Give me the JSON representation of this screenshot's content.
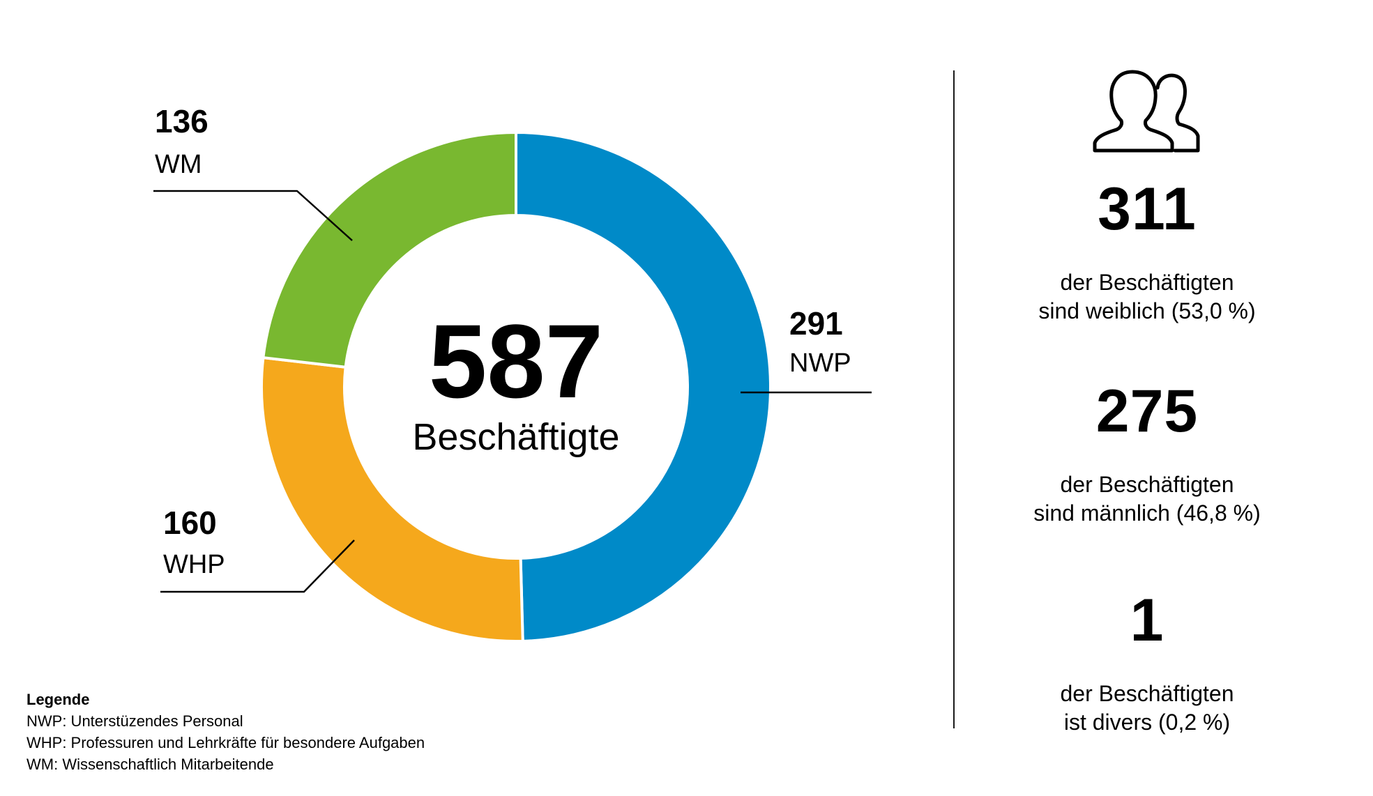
{
  "chart_data": {
    "type": "pie",
    "variant": "donut",
    "center": {
      "value": "587",
      "label": "Beschäftigte"
    },
    "slices": [
      {
        "label": "NWP",
        "value": 291,
        "display": "291",
        "color": "#008AC8"
      },
      {
        "label": "WHP",
        "value": 160,
        "display": "160",
        "color": "#F5A81C"
      },
      {
        "label": "WM",
        "value": 136,
        "display": "136",
        "color": "#79B830"
      }
    ]
  },
  "legend": {
    "title": "Legende",
    "items": [
      "NWP: Unterstüzendes Personal",
      "WHP: Professuren und Lehrkräfte für besondere Aufgaben",
      "WM: Wissenschaftlich Mitarbeitende"
    ]
  },
  "stats": [
    {
      "value": "311",
      "line1": "der Beschäftigten",
      "line2": "sind weiblich (53,0 %)"
    },
    {
      "value": "275",
      "line1": "der Beschäftigten",
      "line2": "sind männlich (46,8 %)"
    },
    {
      "value": "1",
      "line1": "der Beschäftigten",
      "line2": "ist divers (0,2 %)"
    }
  ],
  "icon": "people-icon"
}
